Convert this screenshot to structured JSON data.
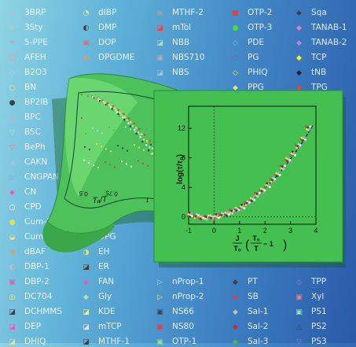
{
  "legend_columns": [
    [
      {
        "label": "3BRP",
        "marker": "+",
        "color": "#e8a8c8"
      },
      {
        "label": "3Sty",
        "marker": "×",
        "color": "#b0d890"
      },
      {
        "label": "5-PPE",
        "marker": "✳",
        "color": "#e090b0"
      },
      {
        "label": "AFEH",
        "marker": "□",
        "color": "#e0a0a0"
      },
      {
        "label": "B2O3",
        "marker": "◇",
        "color": "#a8d0f0"
      },
      {
        "label": "BN",
        "marker": "○",
        "color": "#e8e080"
      },
      {
        "label": "BP2IB",
        "marker": "●",
        "color": "#404040"
      },
      {
        "label": "BPC",
        "marker": "△",
        "color": "#f0a0c0"
      },
      {
        "label": "BSC",
        "marker": "▽",
        "color": "#c0e0a0"
      },
      {
        "label": "BePh",
        "marker": "▽",
        "color": "#f08080"
      },
      {
        "label": "CAKN",
        "marker": "◀",
        "color": "#a0c0e0"
      },
      {
        "label": "CNGPAN",
        "marker": "▷",
        "color": "#a0a0f0"
      },
      {
        "label": "CN",
        "marker": "◆",
        "color": "#e060c0"
      },
      {
        "label": "CPD",
        "marker": "○",
        "color": "#ffffff"
      },
      {
        "label": "Cum-1",
        "marker": "●",
        "color": "#e0e060"
      },
      {
        "label": "Cum-2",
        "marker": "◒",
        "color": "#e0e0a0"
      },
      {
        "label": "dBAF",
        "marker": "◑",
        "color": "#e0a060"
      },
      {
        "label": "DBP-1",
        "marker": "◐",
        "color": "#c0c0c0"
      },
      {
        "label": "DBP-2",
        "marker": "▣",
        "color": "#e060a0"
      },
      {
        "label": "DC704",
        "marker": "◎",
        "color": "#d0f0a0"
      },
      {
        "label": "DCHMMS",
        "marker": "◪",
        "color": "#404040"
      },
      {
        "label": "DEP",
        "marker": "◪",
        "color": "#e060c0"
      },
      {
        "label": "DHIQ",
        "marker": "◪",
        "color": "#e0e0a0"
      }
    ],
    [
      {
        "label": "dIBP",
        "marker": "◔",
        "color": "#f0f080"
      },
      {
        "label": "DMP",
        "marker": "◐",
        "color": "#404040"
      },
      {
        "label": "DOP",
        "marker": "▣",
        "color": "#e07070"
      },
      {
        "label": "DPGDME",
        "marker": "◎",
        "color": "#e0a060"
      },
      {
        "label": "DPG",
        "marker": "◑",
        "color": "#e0e060"
      },
      {
        "label": "EH",
        "marker": "◑",
        "color": "#f0e060"
      },
      {
        "label": "ER",
        "marker": "◪",
        "color": "#404040"
      },
      {
        "label": "FAN",
        "marker": "◆",
        "color": "#e060c0"
      },
      {
        "label": "Gly",
        "marker": "◆",
        "color": "#c0e080"
      },
      {
        "label": "KDE",
        "marker": "◪",
        "color": "#f0f080"
      },
      {
        "label": "mTCP",
        "marker": "◪",
        "color": "#e0e0e0"
      },
      {
        "label": "MTHF-1",
        "marker": "◪",
        "color": "#404040"
      }
    ],
    [
      {
        "label": "MTHF-2",
        "marker": "▣",
        "color": "#a0a0a0"
      },
      {
        "label": "mTol",
        "marker": "◪",
        "color": "#f04040"
      },
      {
        "label": "NBB",
        "marker": "◪",
        "color": "#b0e0b0"
      },
      {
        "label": "NBS710",
        "marker": "▣",
        "color": "#b0b0b0"
      },
      {
        "label": "NBS",
        "marker": "◪",
        "color": "#a0c0e0"
      },
      {
        "label": "nProp-1",
        "marker": "▷",
        "color": "#a0e0f0"
      },
      {
        "label": "nProp-2",
        "marker": "▷",
        "color": "#e0f0a0"
      },
      {
        "label": "NS66",
        "marker": "▣",
        "color": "#404040"
      },
      {
        "label": "NS80",
        "marker": "▣",
        "color": "#e04040"
      },
      {
        "label": "OTP-1",
        "marker": "▣",
        "color": "#a0e080"
      }
    ],
    [
      {
        "label": "OTP-2",
        "marker": "■",
        "color": "#e04040"
      },
      {
        "label": "OTP-3",
        "marker": "●",
        "color": "#40e040"
      },
      {
        "label": "PDE",
        "marker": "◇",
        "color": "#80c0f0"
      },
      {
        "label": "PG",
        "marker": "◇",
        "color": "#e04040"
      },
      {
        "label": "PHIQ",
        "marker": "◇",
        "color": "#f0f080"
      },
      {
        "label": "PPG",
        "marker": "◆",
        "color": "#e0e080"
      },
      {
        "label": "PT",
        "marker": "◆",
        "color": "#404040"
      },
      {
        "label": "SB",
        "marker": "◆",
        "color": "#e04040"
      },
      {
        "label": "Sal-1",
        "marker": "◆",
        "color": "#c0c0c0"
      },
      {
        "label": "Sal-2",
        "marker": "◆",
        "color": "#e02020"
      },
      {
        "label": "Sal-3",
        "marker": "◆",
        "color": "#40c040"
      }
    ],
    [
      {
        "label": "Sqa",
        "marker": "◆",
        "color": "#404040"
      },
      {
        "label": "TANAB-1",
        "marker": "◆",
        "color": "#e080c0"
      },
      {
        "label": "TANAB-2",
        "marker": "◆",
        "color": "#c080e0"
      },
      {
        "label": "TCP",
        "marker": "◆",
        "color": "#f0f040"
      },
      {
        "label": "tNB",
        "marker": "◆",
        "color": "#202020"
      },
      {
        "label": "TPG",
        "marker": "◆",
        "color": "#e04040"
      },
      {
        "label": "TPP",
        "marker": "◇",
        "color": "#e08080"
      },
      {
        "label": "Xyl",
        "marker": "▣",
        "color": "#e08080"
      },
      {
        "label": "PS1",
        "marker": "▣",
        "color": "#a0e0a0"
      },
      {
        "label": "PS2",
        "marker": "△",
        "color": "#404040"
      },
      {
        "label": "PS3",
        "marker": "▽",
        "color": "#e060c0"
      }
    ]
  ],
  "chart_data": [
    {
      "type": "scatter",
      "description_note": "",
      "x_tick_labels": [
        "0.5",
        "0.75",
        "1"
      ],
      "y_tick_labels": [
        "15",
        "10",
        "5",
        "0"
      ],
      "xlabel": "Tₐ/T",
      "series_colors": [
        "#e04040",
        "#f0e040",
        "#a0d8f0",
        "#ffffff",
        "#404040",
        "#40c040"
      ]
    },
    {
      "type": "scatter",
      "xlim": [
        -1,
        4
      ],
      "ylim": [
        -1,
        15
      ],
      "x_ticks": [
        -1,
        0,
        1,
        2,
        3,
        4
      ],
      "y_ticks": [
        0,
        4,
        8,
        12
      ],
      "ylabel": "log(τ/τ₀)",
      "xlabel_numerator": "J",
      "xlabel_denominator": "Tₒ",
      "xlabel_inner_num": "Tₒ",
      "xlabel_inner_den": "T",
      "xlabel_suffix": " − 1",
      "curve": {
        "type": "parabola",
        "coef": [
          0.0,
          0.6,
          0.67
        ]
      },
      "x": [
        -0.95,
        -0.7,
        -0.5,
        -0.3,
        -0.1,
        0.1,
        0.3,
        0.5,
        0.7,
        0.9,
        1.1,
        1.3,
        1.5,
        1.7,
        1.9,
        2.1,
        2.3,
        2.5,
        2.7,
        2.9,
        3.1,
        3.3,
        3.5,
        3.7
      ],
      "y": [
        0.35,
        0.1,
        -0.05,
        -0.1,
        -0.05,
        0.1,
        0.25,
        0.45,
        0.7,
        1.0,
        1.4,
        1.85,
        2.4,
        3.0,
        3.6,
        4.3,
        5.0,
        5.8,
        6.7,
        7.7,
        8.6,
        9.6,
        10.6,
        12.0
      ]
    }
  ]
}
